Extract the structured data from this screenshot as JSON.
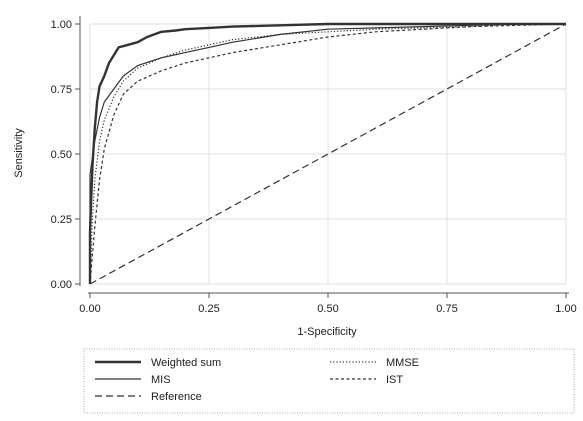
{
  "chart_data": {
    "type": "line",
    "title": "",
    "xlabel": "1-Specificity",
    "ylabel": "Sensitivity",
    "xlim": [
      0,
      1
    ],
    "ylim": [
      0,
      1
    ],
    "xticks": [
      0,
      0.25,
      0.5,
      0.75,
      1
    ],
    "yticks": [
      0,
      0.25,
      0.5,
      0.75,
      1
    ],
    "xtick_labels": [
      "0.00",
      "0.25",
      "0.50",
      "0.75",
      "1.00"
    ],
    "ytick_labels": [
      "0.00",
      "0.25",
      "0.50",
      "0.75",
      "1.00"
    ],
    "grid": true,
    "legend_position": "bottom",
    "series": [
      {
        "name": "Weighted sum",
        "style": "thick-solid",
        "x": [
          0,
          0,
          0.005,
          0.01,
          0.015,
          0.02,
          0.03,
          0.04,
          0.05,
          0.06,
          0.08,
          0.1,
          0.12,
          0.15,
          0.18,
          0.2,
          0.25,
          0.3,
          0.4,
          0.5,
          0.6,
          0.7,
          0.8,
          0.9,
          1.0
        ],
        "y": [
          0,
          0.2,
          0.45,
          0.6,
          0.7,
          0.76,
          0.8,
          0.85,
          0.88,
          0.91,
          0.92,
          0.93,
          0.95,
          0.97,
          0.975,
          0.98,
          0.985,
          0.99,
          0.995,
          1.0,
          1.0,
          1.0,
          1.0,
          1.0,
          1.0
        ]
      },
      {
        "name": "MIS",
        "style": "solid",
        "x": [
          0,
          0,
          0.01,
          0.02,
          0.03,
          0.05,
          0.07,
          0.1,
          0.15,
          0.2,
          0.25,
          0.3,
          0.4,
          0.5,
          0.6,
          0.7,
          0.8,
          0.9,
          1.0
        ],
        "y": [
          0,
          0.42,
          0.55,
          0.64,
          0.7,
          0.75,
          0.8,
          0.84,
          0.87,
          0.89,
          0.91,
          0.93,
          0.96,
          0.98,
          0.985,
          0.99,
          0.995,
          1.0,
          1.0
        ]
      },
      {
        "name": "MMSE",
        "style": "dotted",
        "x": [
          0,
          0.005,
          0.01,
          0.02,
          0.03,
          0.05,
          0.07,
          0.1,
          0.15,
          0.2,
          0.25,
          0.3,
          0.4,
          0.5,
          0.6,
          0.7,
          0.8,
          0.9,
          1.0
        ],
        "y": [
          0,
          0.25,
          0.4,
          0.55,
          0.63,
          0.72,
          0.78,
          0.83,
          0.87,
          0.9,
          0.92,
          0.94,
          0.96,
          0.97,
          0.98,
          0.985,
          0.99,
          1.0,
          1.0
        ]
      },
      {
        "name": "IST",
        "style": "short-dash",
        "x": [
          0,
          0.01,
          0.02,
          0.03,
          0.05,
          0.07,
          0.1,
          0.15,
          0.2,
          0.25,
          0.3,
          0.4,
          0.5,
          0.6,
          0.7,
          0.8,
          0.9,
          1.0
        ],
        "y": [
          0,
          0.22,
          0.4,
          0.52,
          0.65,
          0.73,
          0.78,
          0.82,
          0.85,
          0.87,
          0.89,
          0.92,
          0.95,
          0.97,
          0.98,
          0.99,
          0.995,
          1.0
        ]
      },
      {
        "name": "Reference",
        "style": "long-dash",
        "x": [
          0,
          1
        ],
        "y": [
          0,
          1
        ]
      }
    ]
  }
}
